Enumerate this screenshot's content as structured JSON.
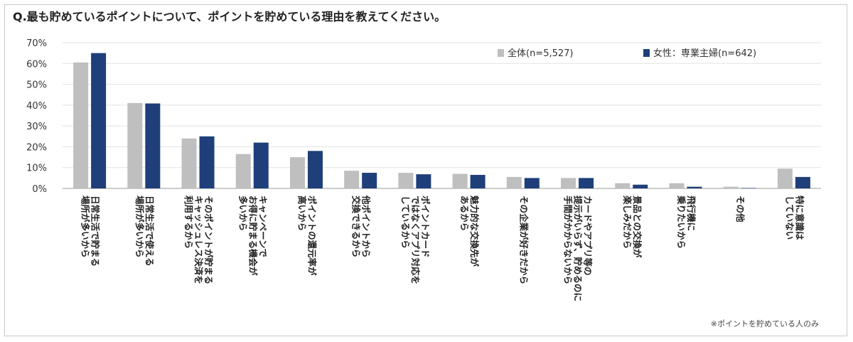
{
  "chart_data": {
    "type": "bar",
    "title": "Q.最も貯めているポイントについて、ポイントを貯めている理由を教えてください。",
    "categories": [
      [
        "日常生活で貯まる",
        "場所が多いから"
      ],
      [
        "日常生活で使える",
        "場所が多いから"
      ],
      [
        "そのポイントが貯まる",
        "キャッシュレス決済を",
        "利用するから"
      ],
      [
        "キャンペーンで",
        "お得に貯まる機会が",
        "多いから"
      ],
      [
        "ポイントの還元率が",
        "高いから"
      ],
      [
        "他ポイントから",
        "交換できるから"
      ],
      [
        "ポイントカード",
        "ではなくアプリ対応を",
        "しているから"
      ],
      [
        "魅力的な交換先が",
        "あるから"
      ],
      [
        "その企業が好きだから"
      ],
      [
        "カードやアプリ等の",
        "提示がいらず、貯めるのに",
        "手間がかからないから"
      ],
      [
        "景品との交換が",
        "楽しみだから"
      ],
      [
        "飛行機に",
        "乗りたいから"
      ],
      [
        "その他"
      ],
      [
        "特に意識は",
        "していない"
      ]
    ],
    "series": [
      {
        "name": "全体(n=5,527)",
        "color": "#bfbfbf",
        "values": [
          60.5,
          41,
          24,
          16.5,
          15,
          8.5,
          7.5,
          7,
          5.5,
          5,
          2.5,
          2.5,
          0.8,
          9.5
        ]
      },
      {
        "name": "女性：専業主婦(n=642)",
        "color": "#1f3f7a",
        "values": [
          65,
          40.8,
          25,
          22,
          18,
          7.5,
          6.8,
          6.5,
          5,
          5,
          1.8,
          0.8,
          0.2,
          5.5
        ]
      }
    ],
    "ylim": [
      0,
      70
    ],
    "yticks": [
      "0%",
      "10%",
      "20%",
      "30%",
      "40%",
      "50%",
      "60%",
      "70%"
    ],
    "legend_position": "top-right",
    "footnote": "※ポイントを貯めている人のみ"
  }
}
